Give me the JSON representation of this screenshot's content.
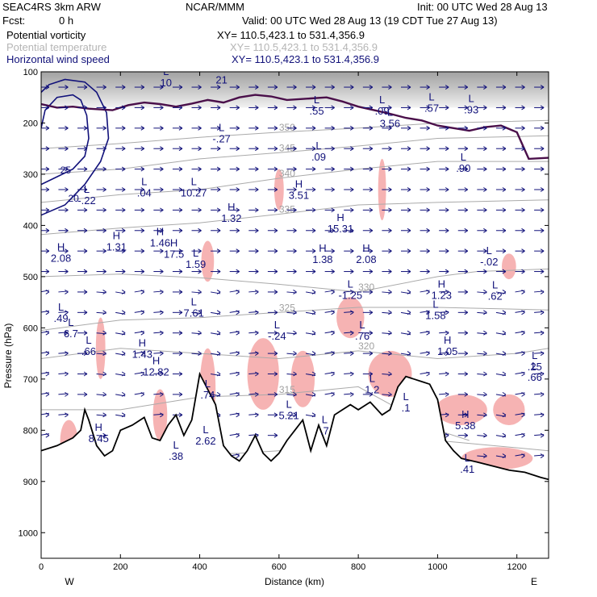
{
  "header": {
    "model_line": "SEAC4RS  3km ARW",
    "source": "NCAR/MMM",
    "init": "Init: 00 UTC Wed 28 Aug 13",
    "fcst_label": "Fcst:",
    "fcst_value": "0 h",
    "valid": "Valid: 00 UTC Wed 28 Aug 13 (19 CDT Tue 27 Aug 13)"
  },
  "fields": [
    {
      "name": "Potential vorticity",
      "xy": "XY= 110.5,423.1 to 531.4,356.9",
      "color": "#000000"
    },
    {
      "name": "Potential temperature",
      "xy": "XY= 110.5,423.1 to 531.4,356.9",
      "color": "#b5b5b5"
    },
    {
      "name": "Horizontal wind speed",
      "xy": "XY= 110.5,423.1 to 531.4,356.9",
      "color": "#11117a"
    }
  ],
  "chart_data": {
    "type": "cross-section",
    "xlabel": "Distance (km)",
    "ylabel": "Pressure (hPa)",
    "xlim": [
      0,
      1280
    ],
    "ylim": [
      1050,
      100
    ],
    "x_ticks": [
      0,
      200,
      400,
      600,
      800,
      1000,
      1200
    ],
    "y_ticks": [
      100,
      200,
      300,
      400,
      500,
      600,
      700,
      800,
      900,
      1000
    ],
    "x_end_labels": {
      "left": "W",
      "right": "E"
    },
    "terrain": [
      [
        0,
        840
      ],
      [
        40,
        830
      ],
      [
        80,
        815
      ],
      [
        100,
        800
      ],
      [
        110,
        760
      ],
      [
        120,
        780
      ],
      [
        140,
        830
      ],
      [
        160,
        850
      ],
      [
        180,
        840
      ],
      [
        200,
        800
      ],
      [
        230,
        790
      ],
      [
        260,
        775
      ],
      [
        280,
        815
      ],
      [
        300,
        820
      ],
      [
        320,
        790
      ],
      [
        340,
        770
      ],
      [
        360,
        810
      ],
      [
        380,
        780
      ],
      [
        400,
        690
      ],
      [
        420,
        720
      ],
      [
        440,
        750
      ],
      [
        460,
        830
      ],
      [
        480,
        850
      ],
      [
        500,
        860
      ],
      [
        520,
        840
      ],
      [
        540,
        810
      ],
      [
        560,
        845
      ],
      [
        580,
        860
      ],
      [
        600,
        845
      ],
      [
        620,
        820
      ],
      [
        640,
        800
      ],
      [
        660,
        780
      ],
      [
        680,
        840
      ],
      [
        700,
        790
      ],
      [
        720,
        830
      ],
      [
        740,
        770
      ],
      [
        760,
        760
      ],
      [
        780,
        750
      ],
      [
        800,
        760
      ],
      [
        830,
        745
      ],
      [
        860,
        770
      ],
      [
        880,
        760
      ],
      [
        900,
        715
      ],
      [
        920,
        695
      ],
      [
        940,
        700
      ],
      [
        960,
        705
      ],
      [
        980,
        710
      ],
      [
        1000,
        740
      ],
      [
        1020,
        820
      ],
      [
        1040,
        840
      ],
      [
        1060,
        855
      ],
      [
        1100,
        862
      ],
      [
        1140,
        870
      ],
      [
        1180,
        878
      ],
      [
        1220,
        882
      ],
      [
        1260,
        892
      ],
      [
        1280,
        896
      ]
    ],
    "theta_contours": [
      {
        "label": "310",
        "points": [
          [
            0,
            848
          ],
          [
            200,
            850
          ],
          [
            500,
            845
          ],
          [
            800,
            830
          ],
          [
            1000,
            820
          ],
          [
            1280,
            840
          ]
        ]
      },
      {
        "label": "315",
        "points": [
          [
            0,
            760
          ],
          [
            200,
            760
          ],
          [
            400,
            735
          ],
          [
            600,
            730
          ],
          [
            800,
            715
          ],
          [
            1000,
            800
          ],
          [
            1080,
            820
          ]
        ]
      },
      {
        "label": "320",
        "points": [
          [
            0,
            660
          ],
          [
            200,
            640
          ],
          [
            400,
            650
          ],
          [
            600,
            660
          ],
          [
            800,
            645
          ],
          [
            1000,
            660
          ],
          [
            1200,
            650
          ],
          [
            1280,
            640
          ]
        ]
      },
      {
        "label": "325",
        "points": [
          [
            0,
            605
          ],
          [
            200,
            585
          ],
          [
            400,
            580
          ],
          [
            600,
            570
          ],
          [
            800,
            560
          ],
          [
            1000,
            560
          ],
          [
            1280,
            565
          ]
        ]
      },
      {
        "label": "330",
        "points": [
          [
            0,
            500
          ],
          [
            200,
            495
          ],
          [
            400,
            502
          ],
          [
            600,
            515
          ],
          [
            800,
            530
          ],
          [
            1000,
            500
          ],
          [
            1100,
            490
          ],
          [
            1280,
            485
          ]
        ]
      },
      {
        "label": "335",
        "points": [
          [
            0,
            418
          ],
          [
            200,
            405
          ],
          [
            400,
            395
          ],
          [
            600,
            378
          ],
          [
            800,
            360
          ],
          [
            1000,
            355
          ],
          [
            1280,
            350
          ]
        ]
      },
      {
        "label": "340",
        "points": [
          [
            0,
            355
          ],
          [
            200,
            340
          ],
          [
            400,
            330
          ],
          [
            600,
            308
          ],
          [
            800,
            290
          ],
          [
            1000,
            275
          ],
          [
            1280,
            275
          ]
        ]
      },
      {
        "label": "345",
        "points": [
          [
            0,
            300
          ],
          [
            200,
            290
          ],
          [
            400,
            270
          ],
          [
            600,
            258
          ],
          [
            800,
            245
          ],
          [
            1000,
            230
          ],
          [
            1280,
            225
          ]
        ]
      },
      {
        "label": "350",
        "points": [
          [
            0,
            250
          ],
          [
            200,
            240
          ],
          [
            400,
            228
          ],
          [
            600,
            218
          ],
          [
            800,
            210
          ],
          [
            1000,
            200
          ],
          [
            1280,
            195
          ]
        ]
      }
    ],
    "pv_contour_top": [
      [
        0,
        163
      ],
      [
        40,
        170
      ],
      [
        80,
        168
      ],
      [
        120,
        172
      ],
      [
        180,
        175
      ],
      [
        220,
        165
      ],
      [
        260,
        160
      ],
      [
        300,
        163
      ],
      [
        340,
        168
      ],
      [
        380,
        162
      ],
      [
        420,
        155
      ],
      [
        460,
        160
      ],
      [
        500,
        150
      ],
      [
        540,
        145
      ],
      [
        580,
        148
      ],
      [
        620,
        155
      ],
      [
        680,
        152
      ],
      [
        720,
        150
      ],
      [
        760,
        158
      ],
      [
        800,
        168
      ],
      [
        840,
        175
      ],
      [
        880,
        182
      ],
      [
        920,
        190
      ],
      [
        960,
        195
      ],
      [
        1000,
        205
      ],
      [
        1040,
        210
      ],
      [
        1080,
        215
      ],
      [
        1120,
        208
      ],
      [
        1160,
        205
      ],
      [
        1200,
        218
      ],
      [
        1230,
        270
      ],
      [
        1280,
        268
      ]
    ],
    "wind_speed_contours": [
      {
        "label": "25",
        "points": [
          [
            0,
            320
          ],
          [
            40,
            305
          ],
          [
            80,
            290
          ],
          [
            110,
            265
          ],
          [
            120,
            230
          ],
          [
            115,
            185
          ],
          [
            100,
            155
          ],
          [
            80,
            145
          ],
          [
            40,
            150
          ],
          [
            10,
            175
          ],
          [
            0,
            210
          ]
        ]
      },
      {
        "label": "20",
        "points": [
          [
            0,
            380
          ],
          [
            60,
            360
          ],
          [
            110,
            320
          ],
          [
            150,
            275
          ],
          [
            170,
            230
          ],
          [
            165,
            180
          ],
          [
            140,
            140
          ],
          [
            110,
            120
          ],
          [
            60,
            115
          ],
          [
            20,
            125
          ],
          [
            0,
            140
          ]
        ]
      }
    ],
    "extrema": [
      {
        "type": "L",
        "value": "-.22",
        "x": 115,
        "p": 355
      },
      {
        "type": "L",
        "value": ".04",
        "x": 260,
        "p": 340
      },
      {
        "type": "L",
        "value": "10.27",
        "x": 385,
        "p": 340
      },
      {
        "type": "H",
        "value": "1.32",
        "x": 480,
        "p": 390
      },
      {
        "type": "L",
        "value": "-.27",
        "x": 455,
        "p": 235
      },
      {
        "type": "L",
        "value": ".09",
        "x": 700,
        "p": 270
      },
      {
        "type": "H",
        "value": "3.51",
        "x": 650,
        "p": 345
      },
      {
        "type": "L",
        "value": ".55",
        "x": 695,
        "p": 180
      },
      {
        "type": "L",
        "value": "3.56",
        "x": 880,
        "p": 205
      },
      {
        "type": "L",
        "value": ".09",
        "x": 860,
        "p": 180
      },
      {
        "type": "L",
        "value": ".57",
        "x": 985,
        "p": 175
      },
      {
        "type": "L",
        "value": ".93",
        "x": 1085,
        "p": 178
      },
      {
        "type": "L",
        "value": ".90",
        "x": 1065,
        "p": 292
      },
      {
        "type": "L",
        "value": "10",
        "x": 315,
        "p": 125
      },
      {
        "type": "L",
        "value": "21",
        "x": 455,
        "p": 120
      },
      {
        "type": "H",
        "value": "2.08",
        "x": 50,
        "p": 468
      },
      {
        "type": "H",
        "value": "1.31",
        "x": 190,
        "p": 446
      },
      {
        "type": "H",
        "value": "17.5",
        "x": 335,
        "p": 460
      },
      {
        "type": "H",
        "value": "1.46",
        "x": 300,
        "p": 438
      },
      {
        "type": "L",
        "value": "1.59",
        "x": 390,
        "p": 480
      },
      {
        "type": "H",
        "value": "15.31",
        "x": 755,
        "p": 410
      },
      {
        "type": "H",
        "value": "1.38",
        "x": 710,
        "p": 470
      },
      {
        "type": "H",
        "value": "2.08",
        "x": 820,
        "p": 470
      },
      {
        "type": "L",
        "value": "-.02",
        "x": 1130,
        "p": 475
      },
      {
        "type": "L",
        "value": "-1.25",
        "x": 780,
        "p": 540
      },
      {
        "type": "H",
        "value": "1.23",
        "x": 1010,
        "p": 540
      },
      {
        "type": "L",
        "value": ".62",
        "x": 1145,
        "p": 542
      },
      {
        "type": "L",
        "value": "1.58",
        "x": 995,
        "p": 580
      },
      {
        "type": "L",
        "value": "7.61",
        "x": 385,
        "p": 575
      },
      {
        "type": "L",
        "value": ".49",
        "x": 50,
        "p": 585
      },
      {
        "type": "L",
        "value": "6.7",
        "x": 75,
        "p": 615
      },
      {
        "type": "L",
        "value": "-.24",
        "x": 595,
        "p": 620
      },
      {
        "type": "L",
        "value": ".76",
        "x": 810,
        "p": 620
      },
      {
        "type": "H",
        "value": "1.05",
        "x": 1025,
        "p": 650
      },
      {
        "type": "L",
        "value": ".66",
        "x": 120,
        "p": 650
      },
      {
        "type": "H",
        "value": "1.43",
        "x": 255,
        "p": 655
      },
      {
        "type": "H",
        "value": "12.82",
        "x": 290,
        "p": 690
      },
      {
        "type": "L",
        "value": ".74",
        "x": 420,
        "p": 735
      },
      {
        "type": "L",
        "value": "1.2",
        "x": 835,
        "p": 725
      },
      {
        "type": "L",
        "value": "5.21",
        "x": 625,
        "p": 775
      },
      {
        "type": "L",
        "value": ".1",
        "x": 920,
        "p": 760
      },
      {
        "type": "H",
        "value": "5.38",
        "x": 1070,
        "p": 795
      },
      {
        "type": "L",
        "value": ".7",
        "x": 715,
        "p": 805
      },
      {
        "type": "H",
        "value": "8.45",
        "x": 145,
        "p": 820
      },
      {
        "type": "L",
        "value": "2.62",
        "x": 415,
        "p": 825
      },
      {
        "type": "L",
        "value": ".38",
        "x": 340,
        "p": 855
      },
      {
        "type": "L",
        "value": ".41",
        "x": 1075,
        "p": 880
      },
      {
        "type": "L",
        "value": ".25",
        "x": 1245,
        "p": 680
      },
      {
        "type": "L",
        "value": ".66",
        "x": 1245,
        "p": 700
      }
    ]
  }
}
